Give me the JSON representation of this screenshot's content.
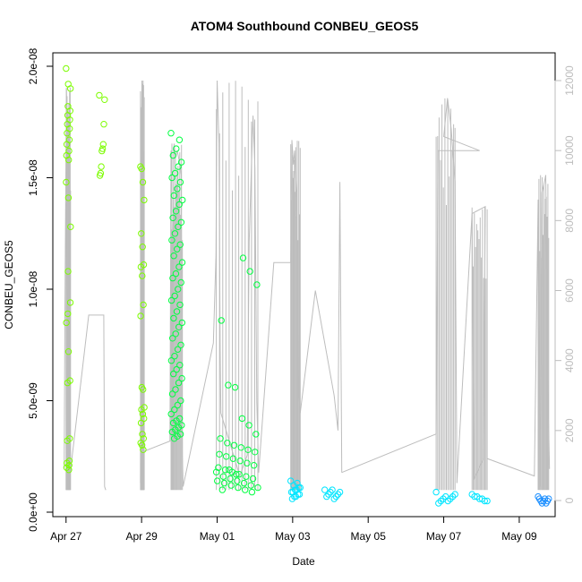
{
  "chart_data": {
    "type": "scatter",
    "title": "ATOM4 Southbound CONBEU_GEOS5",
    "xlabel": "Date",
    "ylabel": "CONBEU_GEOS5",
    "x_tick_labels": [
      "Apr 27",
      "Apr 29",
      "May 01",
      "May 03",
      "May 05",
      "May 07",
      "May 09"
    ],
    "x_tick_days": [
      0,
      2,
      4,
      6,
      8,
      10,
      12
    ],
    "xlim_days": [
      -0.35,
      12.95
    ],
    "ylim": [
      0,
      2e-08
    ],
    "y_ticks": [
      0,
      5e-09,
      1e-08,
      1.5e-08,
      2e-08
    ],
    "y_tick_labels": [
      "0.0e+00",
      "5.0e-09",
      "1.0e-08",
      "1.5e-08",
      "2.0e-08"
    ],
    "y2lim": [
      0,
      12000
    ],
    "y2_ticks": [
      0,
      2000,
      4000,
      6000,
      8000,
      10000,
      12000
    ],
    "y2_tick_labels": [
      "0",
      "2000",
      "4000",
      "6000",
      "8000",
      "10000",
      "12000"
    ],
    "colors": {
      "altitude_line": "#bdbdbd",
      "axis": "#000000",
      "secondary_axis": "#bdbdbd",
      "point_ramp": [
        "#7cfc00",
        "#00ff40",
        "#00e5ff",
        "#1e90ff"
      ]
    },
    "flights": [
      {
        "start_day": -0.05,
        "end_day": 1.05,
        "altitude": [
          [
            -0.05,
            900
          ],
          [
            -0.03,
            5300
          ],
          [
            0.01,
            11800
          ],
          [
            0.05,
            5200
          ],
          [
            0.08,
            500
          ],
          [
            0.6,
            5300
          ],
          [
            1.0,
            5300
          ],
          [
            1.02,
            400
          ],
          [
            1.05,
            300
          ]
        ],
        "points_y": [
          1.99,
          1.92,
          1.9,
          1.82,
          1.8,
          1.78,
          1.76,
          1.74,
          1.72,
          1.7,
          1.67,
          1.65,
          1.62,
          1.6,
          1.58,
          1.48,
          1.41,
          1.28,
          1.08,
          0.94,
          0.89,
          0.59,
          0.58,
          0.33,
          0.32,
          0.23,
          0.22,
          0.21,
          0.2,
          0.19,
          0.85,
          0.72
        ],
        "points_x_spread": [
          0.0,
          0.12
        ],
        "color_index": 0
      },
      {
        "start_day": 0.85,
        "end_day": 1.05,
        "altitude": [],
        "points_y": [
          1.87,
          1.85,
          1.74,
          1.65,
          1.63,
          1.62,
          1.55,
          1.52,
          1.51
        ],
        "points_x_spread": [
          0.88,
          1.02
        ],
        "color_index": 0
      },
      {
        "start_day": 1.95,
        "end_day": 2.1,
        "altitude": [
          [
            1.97,
            500
          ],
          [
            1.99,
            9400
          ],
          [
            2.01,
            12000
          ],
          [
            2.03,
            2100
          ],
          [
            2.05,
            1400
          ]
        ],
        "points_y": [
          1.55,
          1.54,
          1.48,
          1.4,
          1.25,
          1.19,
          1.11,
          1.1,
          1.06,
          0.93,
          0.88,
          0.56,
          0.55,
          0.47,
          0.46,
          0.44,
          0.42,
          0.4,
          0.35,
          0.33,
          0.31,
          0.3,
          0.28
        ],
        "points_x_spread": [
          1.97,
          2.07
        ],
        "color_index": 0
      },
      {
        "start_day": 2.75,
        "end_day": 3.15,
        "altitude": [
          [
            2.05,
            1400
          ],
          [
            2.75,
            1700
          ],
          [
            2.78,
            10000
          ],
          [
            2.82,
            6500
          ],
          [
            2.86,
            10200
          ],
          [
            2.9,
            9800
          ],
          [
            2.94,
            10000
          ],
          [
            3.0,
            9700
          ],
          [
            3.05,
            9300
          ],
          [
            3.08,
            1300
          ],
          [
            3.1,
            400
          ]
        ],
        "points_y": [
          1.7,
          1.67,
          1.63,
          1.6,
          1.57,
          1.55,
          1.52,
          1.5,
          1.48,
          1.45,
          1.42,
          1.4,
          1.38,
          1.35,
          1.32,
          1.3,
          1.28,
          1.25,
          1.22,
          1.2,
          1.18,
          1.15,
          1.12,
          1.1,
          1.07,
          1.05,
          1.03,
          1.0,
          0.97,
          0.95,
          0.93,
          0.9,
          0.87,
          0.85,
          0.83,
          0.8,
          0.78,
          0.75,
          0.73,
          0.7,
          0.68,
          0.66,
          0.64,
          0.62,
          0.6,
          0.58,
          0.55,
          0.53,
          0.5,
          0.48,
          0.46,
          0.44,
          0.42,
          0.41,
          0.4,
          0.39,
          0.38,
          0.37,
          0.36,
          0.35,
          0.34,
          0.33
        ],
        "points_x_spread": [
          2.78,
          3.08
        ],
        "color_index": 1
      },
      {
        "start_day": 3.95,
        "end_day": 5.1,
        "altitude": [
          [
            3.1,
            400
          ],
          [
            3.9,
            4500
          ],
          [
            3.97,
            7000
          ],
          [
            4.0,
            12000
          ],
          [
            4.05,
            10200
          ],
          [
            4.08,
            4300
          ],
          [
            4.1,
            2500
          ],
          [
            4.6,
            700
          ],
          [
            4.8,
            1300
          ],
          [
            4.85,
            7400
          ],
          [
            4.9,
            9200
          ],
          [
            4.95,
            11000
          ],
          [
            5.0,
            9500
          ],
          [
            5.05,
            2800
          ],
          [
            5.1,
            800
          ]
        ],
        "points_y": [
          0.18,
          0.16,
          0.15,
          0.14,
          0.13,
          0.12,
          0.11,
          0.1,
          0.19,
          0.17,
          1.14,
          1.08,
          1.02,
          0.86,
          0.57,
          0.56,
          0.42,
          0.39,
          0.35,
          0.33,
          0.31,
          0.3,
          0.29,
          0.28,
          0.27,
          0.26,
          0.25,
          0.24,
          0.23,
          0.22,
          0.21,
          0.2,
          0.19,
          0.18,
          0.17,
          0.16,
          0.15,
          0.14,
          0.13,
          0.12,
          0.11,
          0.1,
          0.09
        ],
        "points_x_spread": [
          3.98,
          5.08
        ],
        "color_index": 1
      },
      {
        "start_day": 5.9,
        "end_day": 6.35,
        "altitude": [
          [
            5.1,
            800
          ],
          [
            5.5,
            6800
          ],
          [
            5.95,
            6800
          ],
          [
            5.98,
            10300
          ],
          [
            6.02,
            9600
          ],
          [
            6.05,
            10000
          ],
          [
            6.1,
            8800
          ],
          [
            6.15,
            3000
          ],
          [
            6.2,
            2500
          ],
          [
            6.6,
            6000
          ],
          [
            7.1,
            3000
          ],
          [
            7.2,
            2000
          ],
          [
            7.25,
            9100
          ],
          [
            7.3,
            800
          ]
        ],
        "points_y": [
          0.14,
          0.13,
          0.12,
          0.11,
          0.1,
          0.09,
          0.08,
          0.07,
          0.06,
          0.11,
          0.1,
          0.09,
          0.08,
          0.07
        ],
        "points_x_spread": [
          5.95,
          6.2
        ],
        "color_index": 2
      },
      {
        "start_day": 6.8,
        "end_day": 7.3,
        "altitude": [],
        "points_y": [
          0.1,
          0.09,
          0.08,
          0.07,
          0.06,
          0.1,
          0.09,
          0.08,
          0.07
        ],
        "points_x_spread": [
          6.85,
          7.25
        ],
        "color_index": 2
      },
      {
        "start_day": 9.75,
        "end_day": 10.35,
        "altitude": [
          [
            7.3,
            800
          ],
          [
            9.8,
            1900
          ],
          [
            9.85,
            10000
          ],
          [
            9.9,
            10000
          ],
          [
            10.95,
            10000
          ],
          [
            10.0,
            10400
          ],
          [
            10.1,
            11500
          ],
          [
            10.2,
            10600
          ],
          [
            10.3,
            9100
          ],
          [
            10.35,
            500
          ]
        ],
        "points_y": [
          0.09,
          0.08,
          0.07,
          0.06,
          0.05,
          0.07,
          0.06,
          0.05,
          0.04
        ],
        "points_x_spread": [
          9.8,
          10.3
        ],
        "color_index": 2
      },
      {
        "start_day": 10.7,
        "end_day": 11.15,
        "altitude": [
          [
            10.35,
            500
          ],
          [
            10.75,
            8200
          ],
          [
            10.8,
            600
          ],
          [
            11.05,
            1200
          ],
          [
            11.1,
            8400
          ],
          [
            10.75,
            8200
          ]
        ],
        "points_y": [
          0.08,
          0.07,
          0.06,
          0.05,
          0.07,
          0.06,
          0.05
        ],
        "points_x_spread": [
          10.75,
          11.15
        ],
        "color_index": 2
      },
      {
        "start_day": 12.45,
        "end_day": 12.8,
        "altitude": [
          [
            11.15,
            1200
          ],
          [
            12.4,
            700
          ],
          [
            12.5,
            8600
          ],
          [
            12.55,
            400
          ],
          [
            12.6,
            8800
          ],
          [
            12.65,
            9000
          ],
          [
            12.7,
            9300
          ],
          [
            12.75,
            3500
          ],
          [
            12.8,
            900
          ]
        ],
        "points_y": [
          0.07,
          0.06,
          0.05,
          0.04,
          0.06,
          0.05,
          0.04,
          0.05,
          0.06
        ],
        "points_x_spread": [
          12.5,
          12.78
        ],
        "color_index": 3
      }
    ]
  }
}
